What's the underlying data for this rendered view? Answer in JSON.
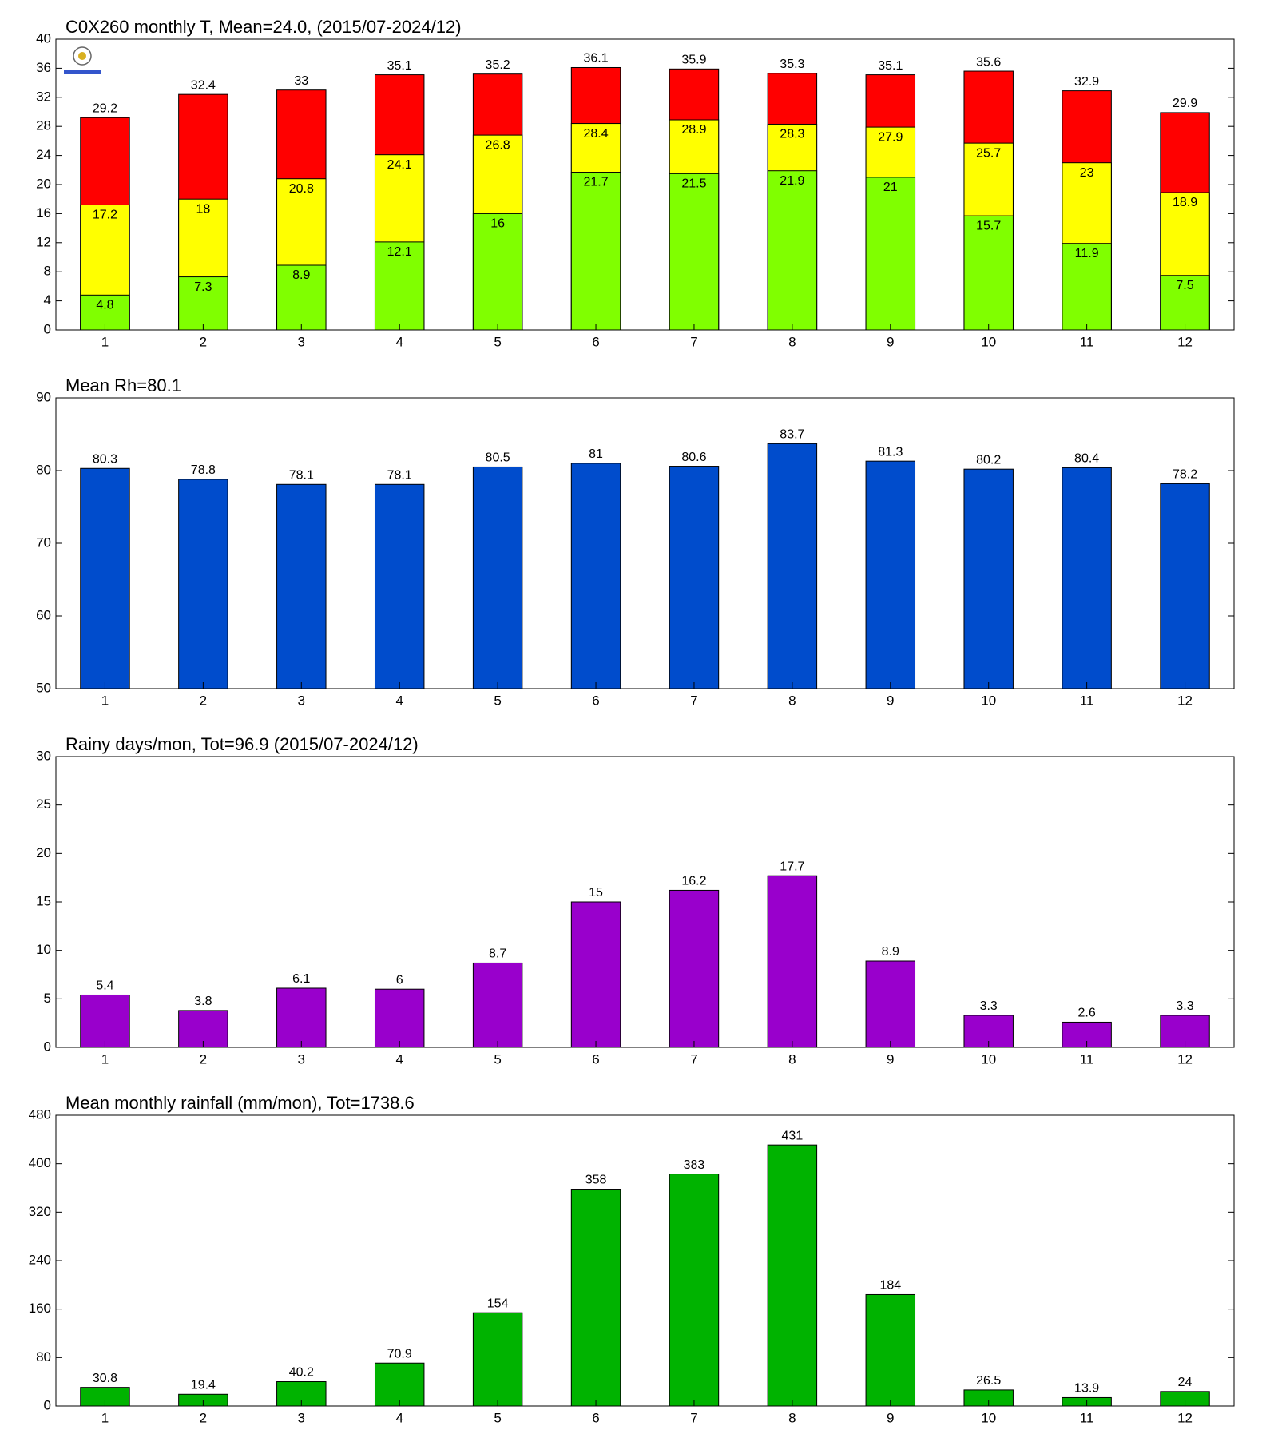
{
  "chart_data": [
    {
      "type": "bar",
      "title": "C0X260 monthly T, Mean=24.0, (2015/07-2024/12)",
      "bar_mode": "overlay",
      "categories": [
        "1",
        "2",
        "3",
        "4",
        "5",
        "6",
        "7",
        "8",
        "9",
        "10",
        "11",
        "12"
      ],
      "series": [
        {
          "color": "#ff0000",
          "values": [
            29.2,
            32.4,
            33,
            35.1,
            35.2,
            36.1,
            35.9,
            35.3,
            35.1,
            35.6,
            32.9,
            29.9
          ]
        },
        {
          "color": "#ffff00",
          "values": [
            17.2,
            18,
            20.8,
            24.1,
            26.8,
            28.4,
            28.9,
            28.3,
            27.9,
            25.7,
            23,
            18.9
          ]
        },
        {
          "color": "#80ff00",
          "values": [
            4.8,
            7.3,
            8.9,
            12.1,
            16,
            21.7,
            21.5,
            21.9,
            21,
            15.7,
            11.9,
            7.5
          ]
        }
      ],
      "ylim": [
        0,
        40
      ],
      "yticks": [
        0,
        4,
        8,
        12,
        16,
        20,
        24,
        28,
        32,
        36,
        40
      ]
    },
    {
      "type": "bar",
      "title": "Mean Rh=80.1",
      "categories": [
        "1",
        "2",
        "3",
        "4",
        "5",
        "6",
        "7",
        "8",
        "9",
        "10",
        "11",
        "12"
      ],
      "values": [
        80.3,
        78.8,
        78.1,
        78.1,
        80.5,
        81,
        80.6,
        83.7,
        81.3,
        80.2,
        80.4,
        78.2
      ],
      "color": "#004ccc",
      "ylim": [
        50,
        90
      ],
      "yticks": [
        50,
        60,
        70,
        80,
        90
      ]
    },
    {
      "type": "bar",
      "title": "Rainy days/mon, Tot=96.9 (2015/07-2024/12)",
      "categories": [
        "1",
        "2",
        "3",
        "4",
        "5",
        "6",
        "7",
        "8",
        "9",
        "10",
        "11",
        "12"
      ],
      "values": [
        5.4,
        3.8,
        6.1,
        6,
        8.7,
        15,
        16.2,
        17.7,
        8.9,
        3.3,
        2.6,
        3.3
      ],
      "color": "#9900cc",
      "ylim": [
        0,
        30
      ],
      "yticks": [
        0,
        5,
        10,
        15,
        20,
        25,
        30
      ]
    },
    {
      "type": "bar",
      "title": "Mean monthly rainfall (mm/mon), Tot=1738.6",
      "categories": [
        "1",
        "2",
        "3",
        "4",
        "5",
        "6",
        "7",
        "8",
        "9",
        "10",
        "11",
        "12"
      ],
      "values": [
        30.8,
        19.4,
        40.2,
        70.9,
        154,
        358,
        383,
        431,
        184,
        26.5,
        13.9,
        24
      ],
      "color": "#00b300",
      "ylim": [
        0,
        480
      ],
      "yticks": [
        0,
        80,
        160,
        240,
        320,
        400,
        480
      ]
    }
  ]
}
